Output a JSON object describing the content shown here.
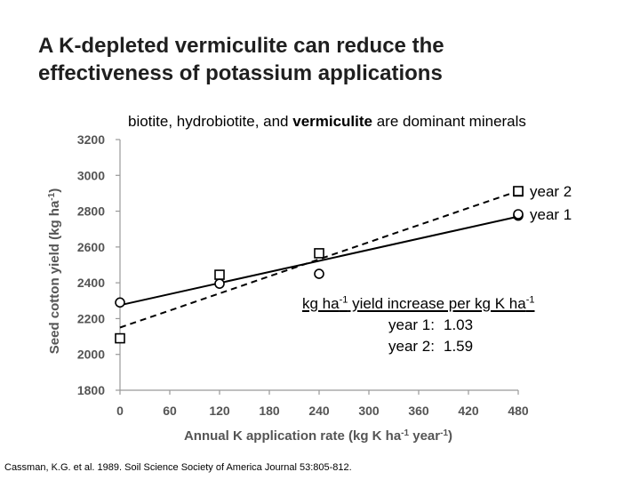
{
  "title": {
    "line1": "A K-depleted vermiculite can reduce the",
    "line2": "effectiveness of potassium applications"
  },
  "subtitle": {
    "pre": "biotite, hydrobiotite, and ",
    "bold": "vermiculite",
    "post": " are dominant minerals"
  },
  "annotation": {
    "head_a": "kg ha",
    "head_sup_a": "-1",
    "head_b": " yield increase per kg K ha",
    "head_sup_b": "-1",
    "rows": [
      {
        "label": "year 1:",
        "value": "1.03"
      },
      {
        "label": "year 2:",
        "value": "1.59"
      }
    ]
  },
  "citation": "Cassman, K.G. et al. 1989. Soil Science Society of America Journal 53:805-812.",
  "chart_data": {
    "type": "scatter",
    "xlabel": "Annual K application rate (kg K ha-1 year-1)",
    "ylabel": "Seed cotton yield (kg ha-1)",
    "xlim": [
      0,
      480
    ],
    "ylim": [
      1800,
      3200
    ],
    "xticks": [
      "0",
      "60",
      "120",
      "180",
      "240",
      "300",
      "360",
      "420",
      "480"
    ],
    "yticks": [
      "1800",
      "2000",
      "2200",
      "2400",
      "2600",
      "2800",
      "3000",
      "3200"
    ],
    "grid": false,
    "legend_position": "right",
    "series": [
      {
        "name": "year 2",
        "marker": "square",
        "fit": "dashed",
        "x": [
          0,
          120,
          240,
          480
        ],
        "y": [
          2090,
          2445,
          2565,
          2910
        ],
        "fit_line": {
          "x": [
            0,
            480
          ],
          "y": [
            2150,
            2913
          ]
        }
      },
      {
        "name": "year 1",
        "marker": "circle",
        "fit": "solid",
        "x": [
          0,
          120,
          240,
          480
        ],
        "y": [
          2290,
          2395,
          2450,
          2775
        ],
        "fit_line": {
          "x": [
            0,
            480
          ],
          "y": [
            2275,
            2770
          ]
        }
      }
    ]
  }
}
